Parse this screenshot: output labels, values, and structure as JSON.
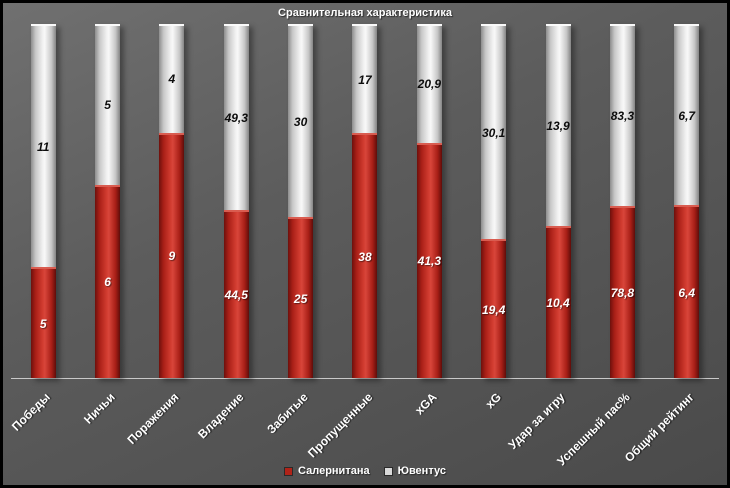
{
  "chart_data": {
    "type": "bar",
    "subtype": "stacked-100-percent-column",
    "title": "Сравнительная характеристика",
    "categories": [
      "Победы",
      "Ничьи",
      "Поражения",
      "Владение",
      "Забитые",
      "Пропущенные",
      "xGA",
      "xG",
      "Удар за игру",
      "Успешный пас%",
      "Общий рейтинг"
    ],
    "series": [
      {
        "name": "Салернитана",
        "color": "#b02318",
        "values": [
          5,
          6,
          9,
          44.5,
          25,
          38,
          41.3,
          19.4,
          10.4,
          78.8,
          6.4
        ],
        "labels": [
          "5",
          "6",
          "9",
          "44,5",
          "25",
          "38",
          "41,3",
          "19,4",
          "10,4",
          "78,8",
          "6,4"
        ]
      },
      {
        "name": "Ювентус",
        "color": "#d9d9d9",
        "values": [
          11,
          5,
          4,
          49.3,
          30,
          17,
          20.9,
          30.1,
          13.9,
          83.3,
          6.7
        ],
        "labels": [
          "11",
          "5",
          "4",
          "49,3",
          "30",
          "17",
          "20,9",
          "30,1",
          "13,9",
          "83,3",
          "6,7"
        ]
      }
    ],
    "xlabel": "",
    "ylabel": "",
    "ylim": [
      0,
      100
    ],
    "grid": false,
    "legend_position": "bottom",
    "background_color": "#5c5c5c",
    "text_color": "#ffffff"
  }
}
